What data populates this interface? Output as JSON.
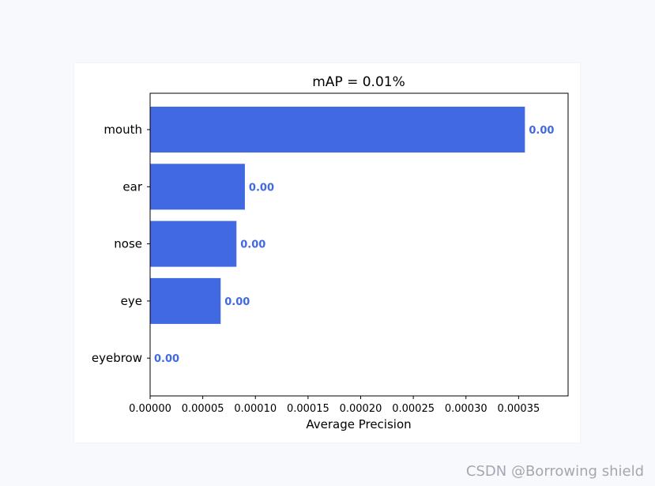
{
  "watermark": "CSDN @Borrowing shield",
  "colors": {
    "bar": "#4169e1",
    "label": "#4169e1",
    "axis": "#000000"
  },
  "chart_data": {
    "type": "bar",
    "orientation": "horizontal",
    "title": "mAP = 0.01%",
    "xlabel": "Average Precision",
    "ylabel": "",
    "categories": [
      "mouth",
      "ear",
      "nose",
      "eye",
      "eyebrow"
    ],
    "values": [
      0.000356,
      9e-05,
      8.2e-05,
      6.7e-05,
      0.0
    ],
    "value_labels": [
      "0.00",
      "0.00",
      "0.00",
      "0.00",
      "0.00"
    ],
    "xlim": [
      0,
      0.000397
    ],
    "xticks": [
      0,
      5e-05,
      0.0001,
      0.00015,
      0.0002,
      0.00025,
      0.0003,
      0.00035
    ],
    "xtick_labels": [
      "0.00000",
      "0.00005",
      "0.00010",
      "0.00015",
      "0.00020",
      "0.00025",
      "0.00030",
      "0.00035"
    ],
    "grid": false,
    "legend": "none"
  }
}
